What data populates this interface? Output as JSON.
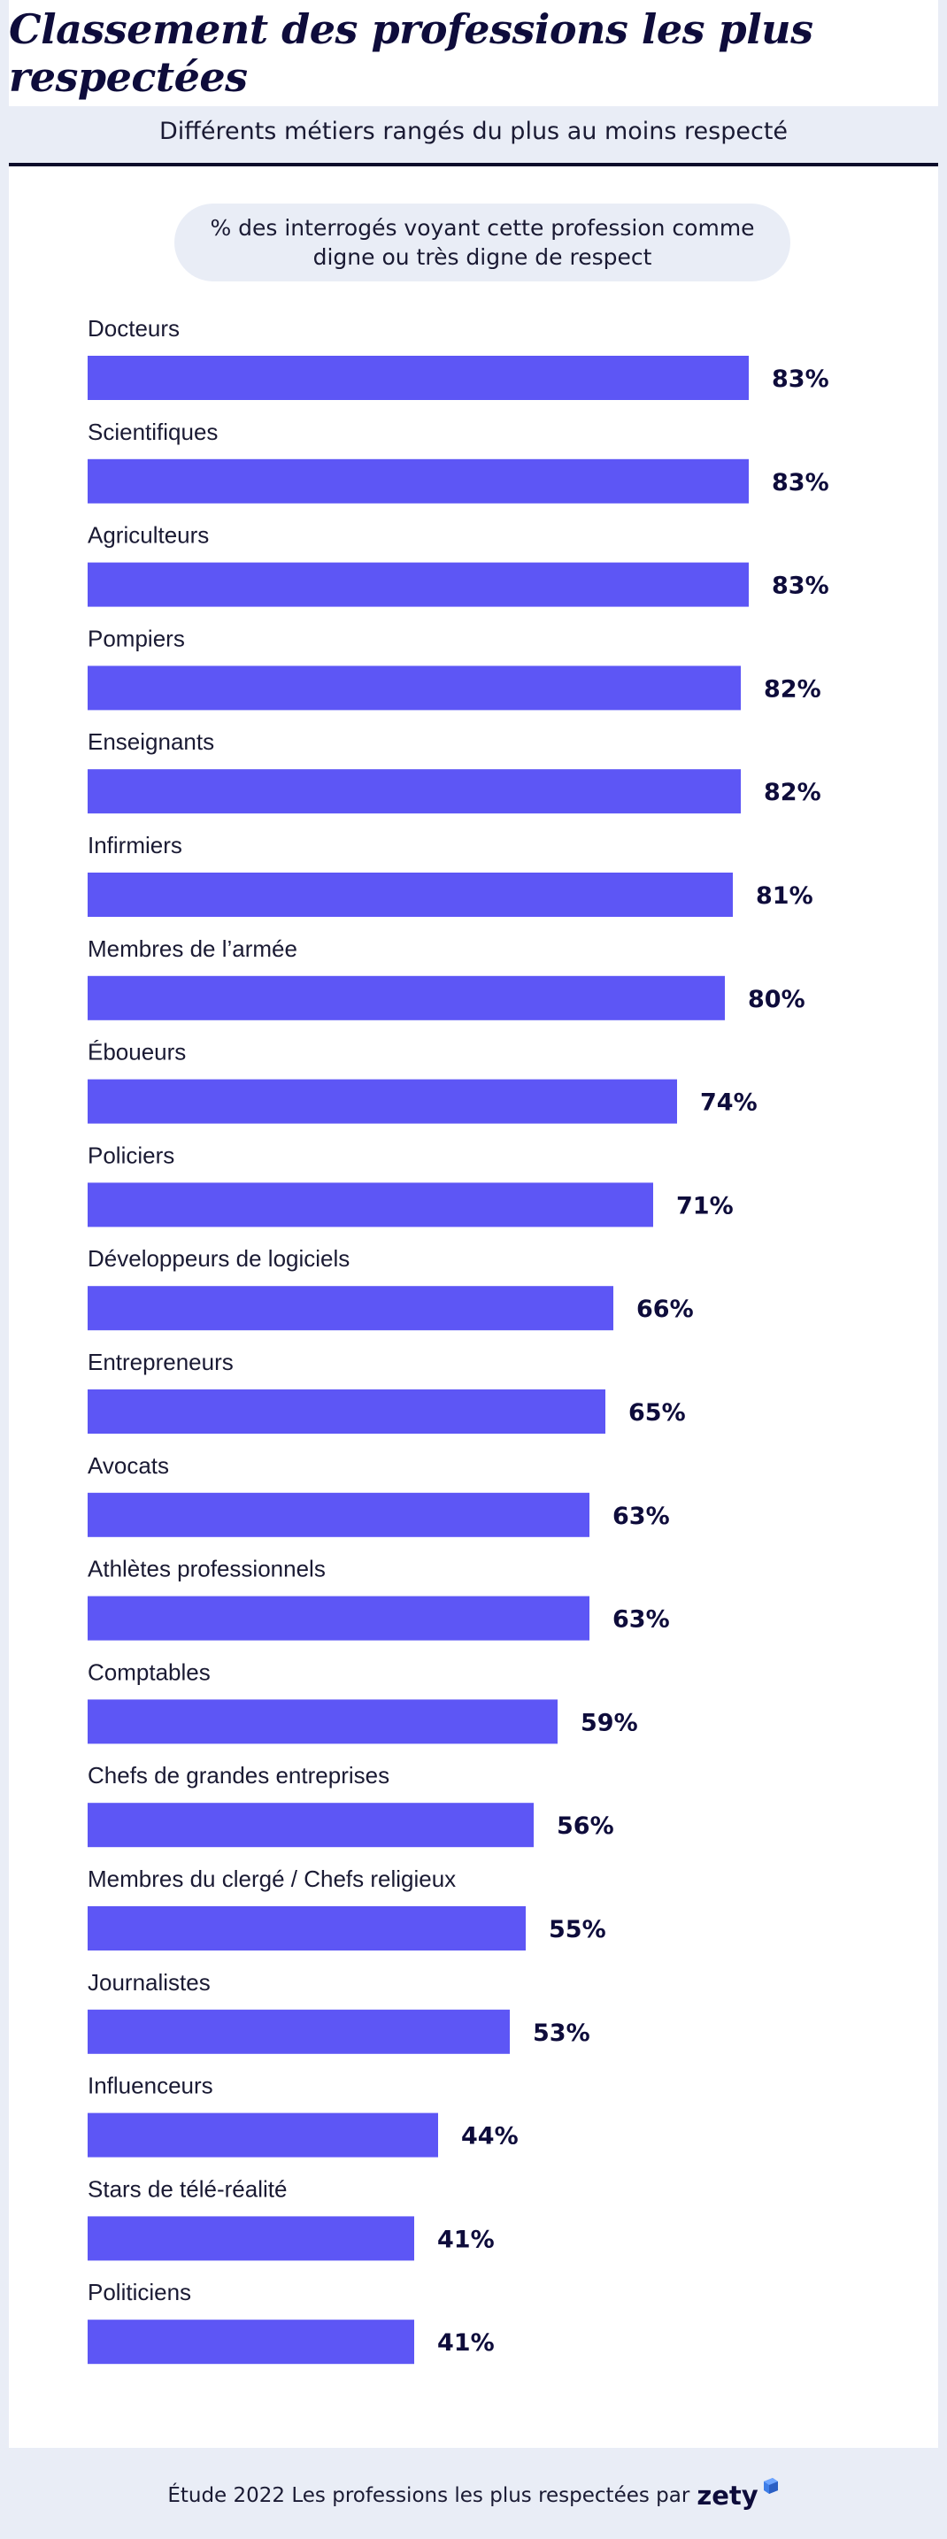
{
  "header": {
    "title": "Classement des professions les plus respectées",
    "subtitle": "Différents métiers rangés du plus au moins respecté"
  },
  "chart_data": {
    "type": "bar",
    "orientation": "horizontal",
    "title": "Classement des professions les plus respectées",
    "subtitle": "Différents métiers rangés du plus au moins respecté",
    "legend": "% des interrogés voyant cette profession comme digne ou très digne de respect",
    "categories": [
      "Docteurs",
      "Scientifiques",
      "Agriculteurs",
      "Pompiers",
      "Enseignants",
      "Infirmiers",
      "Membres de l’armée",
      "Éboueurs",
      "Policiers",
      "Développeurs de logiciels",
      "Entrepreneurs",
      "Avocats",
      "Athlètes professionnels",
      "Comptables",
      "Chefs de grandes entreprises",
      "Membres du clergé / Chefs religieux",
      "Journalistes",
      "Influenceurs",
      "Stars de télé-réalité",
      "Politiciens"
    ],
    "values": [
      83,
      83,
      83,
      82,
      82,
      81,
      80,
      74,
      71,
      66,
      65,
      63,
      63,
      59,
      56,
      55,
      53,
      44,
      41,
      41
    ],
    "unit": "%",
    "bar_color": "#5d56f5"
  },
  "footer": {
    "text": "Étude 2022 Les professions les plus  respectées par",
    "brand": "zety"
  },
  "colors": {
    "background": "#e9edf6",
    "panel": "#ffffff",
    "title": "#0e0c3b",
    "bar": "#5d56f5"
  }
}
